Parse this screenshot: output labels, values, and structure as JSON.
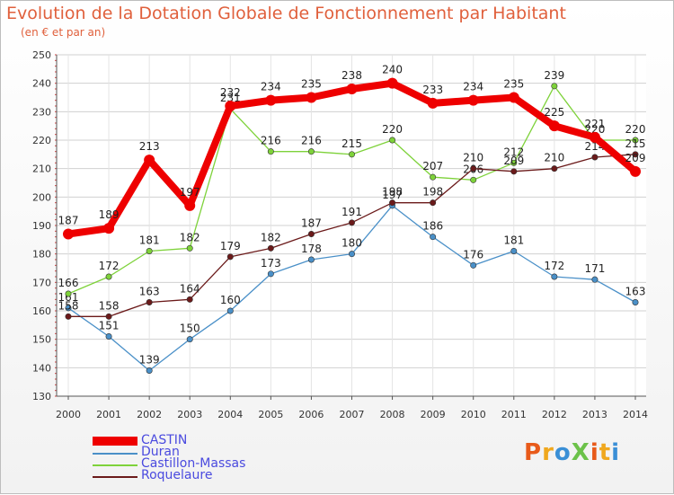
{
  "header": {
    "title": "Evolution de la Dotation Globale de Fonctionnement par Habitant",
    "subtitle": "(en € et par an)"
  },
  "logo": "ProXiti",
  "chart_data": {
    "type": "line",
    "x": [
      "2000",
      "2001",
      "2002",
      "2003",
      "2004",
      "2005",
      "2006",
      "2007",
      "2008",
      "2009",
      "2010",
      "2011",
      "2012",
      "2013",
      "2014"
    ],
    "ylim": [
      130,
      250
    ],
    "yticks": [
      130,
      140,
      150,
      160,
      170,
      180,
      190,
      200,
      210,
      220,
      230,
      240,
      250
    ],
    "series": [
      {
        "name": "Duran",
        "color": "#4a90c8",
        "values": [
          161,
          151,
          139,
          150,
          160,
          173,
          178,
          180,
          197,
          186,
          176,
          181,
          172,
          171,
          163
        ]
      },
      {
        "name": "Castillon-Massas",
        "color": "#7ed23a",
        "values": [
          166,
          172,
          181,
          182,
          231,
          216,
          216,
          215,
          220,
          207,
          206,
          212,
          239,
          220,
          220
        ]
      },
      {
        "name": "Roquelaure",
        "color": "#6b1a1a",
        "values": [
          158,
          158,
          163,
          164,
          179,
          182,
          187,
          191,
          198,
          198,
          210,
          209,
          210,
          214,
          215
        ]
      },
      {
        "name": "CASTIN",
        "color": "#ee0000",
        "values": [
          187,
          189,
          213,
          197,
          232,
          234,
          235,
          238,
          240,
          233,
          234,
          235,
          225,
          221,
          209
        ]
      }
    ],
    "legend_order": [
      "CASTIN",
      "Duran",
      "Castillon-Massas",
      "Roquelaure"
    ]
  }
}
